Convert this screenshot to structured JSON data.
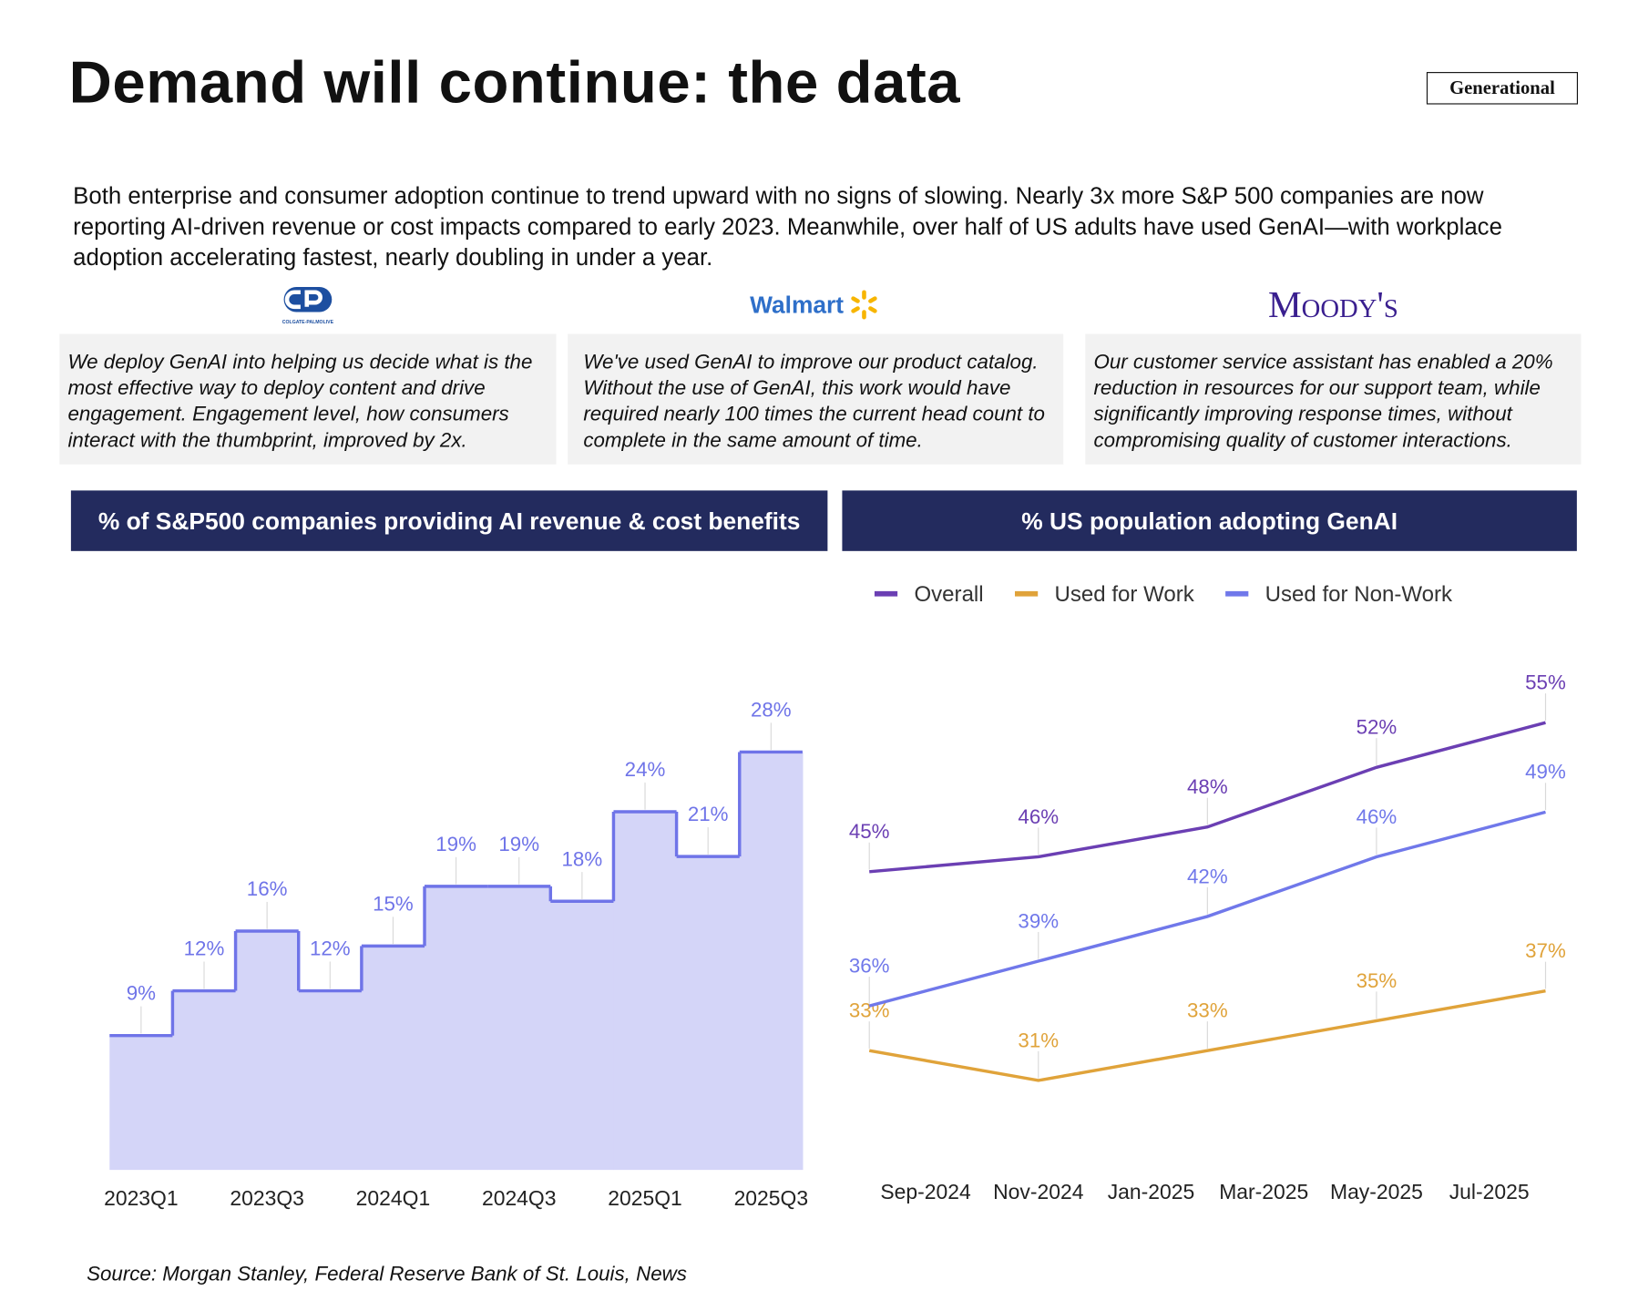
{
  "header": {
    "title": "Demand will continue: the data",
    "badge": "Generational"
  },
  "intro": "Both enterprise and consumer adoption continue to trend upward with no signs of slowing. Nearly 3x more S&P 500 companies are now reporting AI-driven revenue or cost impacts compared to early 2023. Meanwhile, over half of US adults have used GenAI—with workplace adoption accelerating fastest, nearly doubling in under a year.",
  "quotes": [
    {
      "logo": "COLGATE-PALMOLIVE",
      "text": "We deploy GenAI into helping us decide what is the most effective way to deploy content and drive engagement. Engagement level, how consumers interact with the thumbprint, improved by 2x."
    },
    {
      "logo": "Walmart",
      "text": "We've used GenAI to improve our product catalog. Without the use of GenAI, this work would have required nearly 100 times the current head count to complete in the same amount of time."
    },
    {
      "logo": "Moody's",
      "text": "Our customer service assistant has enabled a 20% reduction in resources for our support team, while significantly improving response times, without compromising quality of customer interactions."
    }
  ],
  "source": "Source: Morgan Stanley, Federal Reserve Bank of St. Louis, News",
  "chart_data": [
    {
      "type": "step-area",
      "title": "% of S&P500 companies providing AI revenue & cost benefits",
      "categories": [
        "2023Q1",
        null,
        "2023Q3",
        null,
        "2024Q1",
        null,
        "2024Q3",
        null,
        "2025Q1",
        null,
        "2025Q3"
      ],
      "values": [
        9,
        12,
        16,
        12,
        15,
        19,
        19,
        18,
        24,
        21,
        28
      ],
      "value_labels": [
        "9%",
        "12%",
        "16%",
        "12%",
        "15%",
        "19%",
        "19%",
        "18%",
        "24%",
        "21%",
        "28%"
      ],
      "color": "#6f74e8",
      "ylim": [
        0,
        30
      ]
    },
    {
      "type": "line",
      "title": "% US population adopting GenAI",
      "x": [
        "2024-08",
        "2024-11",
        "2025-02",
        "2025-05",
        "2025-08"
      ],
      "xlim": [
        "2024-08",
        "2025-08"
      ],
      "xticks": [
        {
          "value": "2024-09",
          "label": "Sep-2024"
        },
        {
          "value": "2024-11",
          "label": "Nov-2024"
        },
        {
          "value": "2025-01",
          "label": "Jan-2025"
        },
        {
          "value": "2025-03",
          "label": "Mar-2025"
        },
        {
          "value": "2025-05",
          "label": "May-2025"
        },
        {
          "value": "2025-07",
          "label": "Jul-2025"
        }
      ],
      "ylim": [
        25,
        60
      ],
      "legend": "top",
      "series": [
        {
          "name": "Overall",
          "color": "#6b3fb3",
          "values": [
            45,
            46,
            48,
            52,
            55
          ],
          "value_labels": [
            "45%",
            "46%",
            "48%",
            "52%",
            "55%"
          ]
        },
        {
          "name": "Used for Work",
          "color": "#e0a33a",
          "values": [
            33,
            31,
            33,
            35,
            37
          ],
          "value_labels": [
            "33%",
            "31%",
            "33%",
            "35%",
            "37%"
          ]
        },
        {
          "name": "Used for Non-Work",
          "color": "#7078ea",
          "values": [
            36,
            39,
            42,
            46,
            49
          ],
          "value_labels": [
            "36%",
            "39%",
            "42%",
            "46%",
            "49%"
          ]
        }
      ]
    }
  ]
}
